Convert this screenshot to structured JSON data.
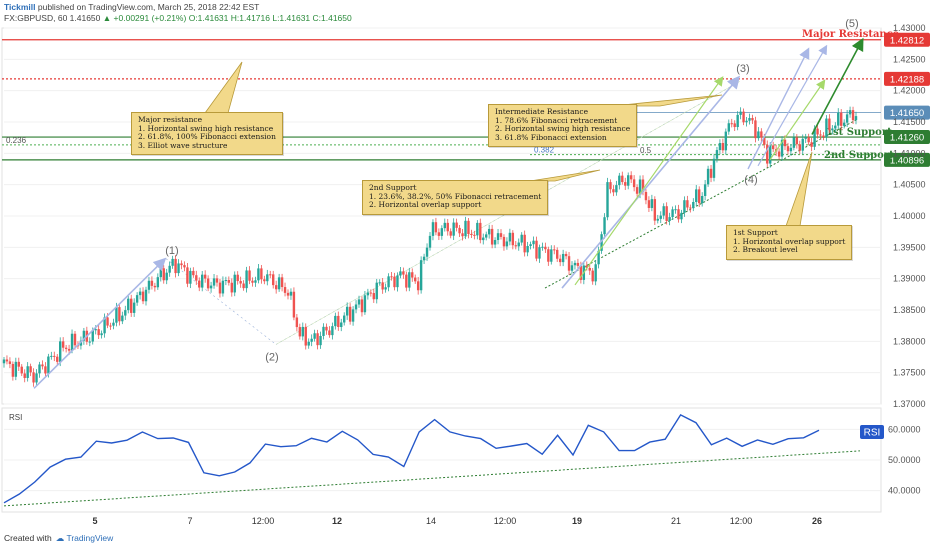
{
  "header": {
    "brand": "Tickmill",
    "line1_rest": " published on TradingView.com, March 25, 2018 22:42 EST",
    "line2_symbol": "FX:GBPUSD, 60  1.41650",
    "line2_change": "▲ +0.00291 (+0.21%)",
    "line2_ohlc": " O:1.41631 H:1.41716 L:1.41631 C:1.41650"
  },
  "footer": {
    "created_with": "Created with",
    "brand": "TradingView"
  },
  "colors": {
    "bull": "#26a69a",
    "bear": "#ef5350",
    "resistance": "#e53935",
    "support": "#2e7d32",
    "fib": "#4caf50",
    "current": "#5b8db8",
    "rsi": "#2457c9",
    "arrow_blue": "#a9b7e6",
    "arrow_green": "#a6d96a",
    "note_bg": "#f2d98a"
  },
  "annotations": {
    "major_resistance": "Major resistance\n1. Horizontal swing high resistance\n2. 61.8%, 100% Fibonacci extension\n3. Elliot wave structure",
    "intermediate": "Intermediate Resistance\n1. 78.6% Fibonacci retracement\n2. Horizontal swing high resistance\n3. 61.8% Fibonacci extension",
    "second_support": "2nd Support\n1. 23.6%, 38.2%, 50% Fibonacci retracement\n2. Horizontal overlap support",
    "first_support": "1st Support\n1. Horizontal overlap support\n2. Breakout level"
  },
  "chart_data": [
    {
      "type": "candlestick",
      "symbol": "FX:GBPUSD",
      "timeframe": "60",
      "ylim": [
        1.37,
        1.43
      ],
      "y_ticks": [
        "1.43000",
        "1.42500",
        "1.42000",
        "1.41500",
        "1.41000",
        "1.40500",
        "1.40000",
        "1.39500",
        "1.39000",
        "1.38500",
        "1.38000",
        "1.37500",
        "1.37000"
      ],
      "x_ticks": [
        "5",
        "7",
        "12:00",
        "12",
        "14",
        "12:00",
        "19",
        "21",
        "12:00",
        "26"
      ],
      "close_path": [
        [
          0,
          1.3765
        ],
        [
          10,
          1.3745
        ],
        [
          20,
          1.379
        ],
        [
          30,
          1.381
        ],
        [
          40,
          1.3845
        ],
        [
          52,
          1.39
        ],
        [
          58,
          1.3925
        ],
        [
          64,
          1.39
        ],
        [
          72,
          1.389
        ],
        [
          80,
          1.3895
        ],
        [
          88,
          1.3905
        ],
        [
          96,
          1.388
        ],
        [
          100,
          1.381
        ],
        [
          104,
          1.38
        ],
        [
          110,
          1.382
        ],
        [
          118,
          1.385
        ],
        [
          126,
          1.3885
        ],
        [
          134,
          1.3905
        ],
        [
          140,
          1.3895
        ],
        [
          144,
          1.3975
        ],
        [
          150,
          1.398
        ],
        [
          158,
          1.3975
        ],
        [
          166,
          1.3965
        ],
        [
          176,
          1.3955
        ],
        [
          188,
          1.3935
        ],
        [
          194,
          1.3915
        ],
        [
          200,
          1.391
        ],
        [
          204,
          1.404
        ],
        [
          210,
          1.406
        ],
        [
          216,
          1.404
        ],
        [
          220,
          1.4
        ],
        [
          228,
          1.4005
        ],
        [
          236,
          1.4035
        ],
        [
          240,
          1.409
        ],
        [
          246,
          1.415
        ],
        [
          250,
          1.416
        ],
        [
          254,
          1.414
        ],
        [
          258,
          1.41
        ],
        [
          264,
          1.411
        ],
        [
          272,
          1.412
        ],
        [
          280,
          1.4145
        ],
        [
          288,
          1.4165
        ]
      ],
      "labels": {
        "major_resistance": "Major Resistance",
        "first_support": "1st Support",
        "second_support": "2nd Support",
        "fib_236": "0.236",
        "fib_382": "0.382",
        "fib_05": "0.5",
        "wave_1": "(1)",
        "wave_2": "(2)",
        "wave_3": "(3)",
        "wave_4": "(4)",
        "wave_5": "(5)"
      },
      "levels": [
        {
          "name": "Major Resistance",
          "value": 1.42812,
          "label": "1.42812",
          "color": "#e53935",
          "style": "solid"
        },
        {
          "name": "Intermediate Resistance",
          "value": 1.42188,
          "label": "1.42188",
          "color": "#e53935",
          "style": "dotted"
        },
        {
          "name": "Current",
          "value": 1.4165,
          "label": "1.41650",
          "color": "#5b8db8",
          "style": "solid"
        },
        {
          "name": "1st Support",
          "value": 1.4126,
          "label": "1.41260",
          "color": "#2e7d32",
          "style": "solid"
        },
        {
          "name": "2nd Support",
          "value": 1.40896,
          "label": "1.40896",
          "color": "#2e7d32",
          "style": "solid"
        }
      ]
    },
    {
      "type": "line",
      "title": "RSI",
      "ylim": [
        33,
        67
      ],
      "y_ticks": [
        "60.0000",
        "50.0000",
        "40.0000"
      ],
      "tag": "RSI",
      "series": [
        {
          "values": [
            36,
            38,
            44,
            47,
            50,
            52,
            55,
            56,
            57,
            58,
            58,
            57,
            55,
            47,
            44,
            46,
            50,
            54,
            55,
            55,
            56,
            57,
            59,
            56,
            53,
            50,
            48,
            60,
            62,
            60,
            58,
            56,
            55,
            54,
            55,
            53,
            57,
            52,
            62,
            58,
            54,
            53,
            55,
            58,
            64,
            62,
            56,
            56,
            55,
            57,
            54,
            58,
            57,
            59
          ]
        }
      ]
    }
  ]
}
